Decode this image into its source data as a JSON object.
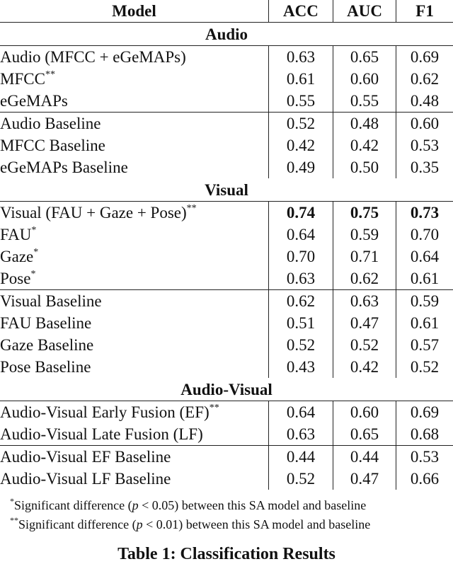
{
  "table": {
    "headers": [
      "Model",
      "ACC",
      "AUC",
      "F1"
    ],
    "sections": [
      {
        "title": "Audio",
        "groups": [
          [
            {
              "model": "Audio (MFCC + eGeMAPs)",
              "sup": "",
              "acc": "0.63",
              "auc": "0.65",
              "f1": "0.69",
              "bold": false
            },
            {
              "model": "MFCC",
              "sup": "**",
              "acc": "0.61",
              "auc": "0.60",
              "f1": "0.62",
              "bold": false
            },
            {
              "model": "eGeMAPs",
              "sup": "",
              "acc": "0.55",
              "auc": "0.55",
              "f1": "0.48",
              "bold": false
            }
          ],
          [
            {
              "model": "Audio Baseline",
              "sup": "",
              "acc": "0.52",
              "auc": "0.48",
              "f1": "0.60",
              "bold": false
            },
            {
              "model": "MFCC Baseline",
              "sup": "",
              "acc": "0.42",
              "auc": "0.42",
              "f1": "0.53",
              "bold": false
            },
            {
              "model": "eGeMAPs Baseline",
              "sup": "",
              "acc": "0.49",
              "auc": "0.50",
              "f1": "0.35",
              "bold": false
            }
          ]
        ]
      },
      {
        "title": "Visual",
        "groups": [
          [
            {
              "model": "Visual (FAU + Gaze + Pose)",
              "sup": "**",
              "acc": "0.74",
              "auc": "0.75",
              "f1": "0.73",
              "bold": true
            },
            {
              "model": "FAU",
              "sup": "*",
              "acc": "0.64",
              "auc": "0.59",
              "f1": "0.70",
              "bold": false
            },
            {
              "model": "Gaze",
              "sup": "*",
              "acc": "0.70",
              "auc": "0.71",
              "f1": "0.64",
              "bold": false
            },
            {
              "model": "Pose",
              "sup": "*",
              "acc": "0.63",
              "auc": "0.62",
              "f1": "0.61",
              "bold": false
            }
          ],
          [
            {
              "model": "Visual Baseline",
              "sup": "",
              "acc": "0.62",
              "auc": "0.63",
              "f1": "0.59",
              "bold": false
            },
            {
              "model": "FAU Baseline",
              "sup": "",
              "acc": "0.51",
              "auc": "0.47",
              "f1": "0.61",
              "bold": false
            },
            {
              "model": "Gaze Baseline",
              "sup": "",
              "acc": "0.52",
              "auc": "0.52",
              "f1": "0.57",
              "bold": false
            },
            {
              "model": "Pose Baseline",
              "sup": "",
              "acc": "0.43",
              "auc": "0.42",
              "f1": "0.52",
              "bold": false
            }
          ]
        ]
      },
      {
        "title": "Audio-Visual",
        "groups": [
          [
            {
              "model": "Audio-Visual Early Fusion (EF)",
              "sup": "**",
              "acc": "0.64",
              "auc": "0.60",
              "f1": "0.69",
              "bold": false
            },
            {
              "model": "Audio-Visual Late Fusion (LF)",
              "sup": "",
              "acc": "0.63",
              "auc": "0.65",
              "f1": "0.68",
              "bold": false
            }
          ],
          [
            {
              "model": "Audio-Visual EF Baseline",
              "sup": "",
              "acc": "0.44",
              "auc": "0.44",
              "f1": "0.53",
              "bold": false
            },
            {
              "model": "Audio-Visual LF Baseline",
              "sup": "",
              "acc": "0.52",
              "auc": "0.47",
              "f1": "0.66",
              "bold": false
            }
          ]
        ]
      }
    ]
  },
  "footnotes": [
    {
      "mark": "*",
      "pre": "Significant difference (",
      "var": "p",
      "rel": " < 0.05",
      "post": ") between this SA model and baseline"
    },
    {
      "mark": "**",
      "pre": "Significant difference (",
      "var": "p",
      "rel": " < 0.01",
      "post": ") between this SA model and baseline"
    }
  ],
  "caption": "Table 1: Classification Results"
}
